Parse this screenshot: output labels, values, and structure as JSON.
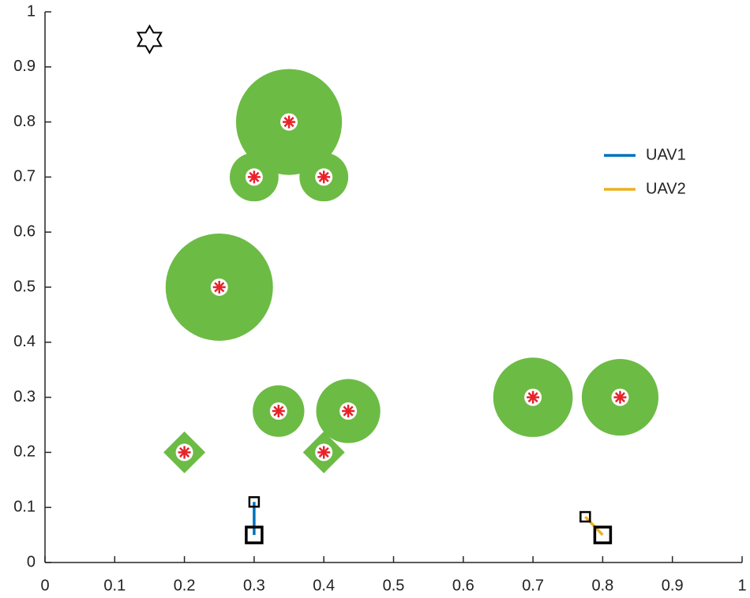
{
  "chart_data": {
    "type": "scatter",
    "xlim": [
      0,
      1
    ],
    "ylim": [
      0,
      1
    ],
    "xticks": [
      0,
      0.1,
      0.2,
      0.3,
      0.4,
      0.5,
      0.6,
      0.7,
      0.8,
      0.9,
      1
    ],
    "yticks": [
      0,
      0.1,
      0.2,
      0.3,
      0.4,
      0.5,
      0.6,
      0.7,
      0.8,
      0.9,
      1
    ],
    "goal": {
      "x": 0.15,
      "y": 0.95
    },
    "obstacle_color": "#6cbb45",
    "center_color": "#e8232a",
    "obstacles": [
      {
        "shape": "circle",
        "x": 0.35,
        "y": 0.8,
        "r": 0.076
      },
      {
        "shape": "circle",
        "x": 0.3,
        "y": 0.7,
        "r": 0.035
      },
      {
        "shape": "circle",
        "x": 0.4,
        "y": 0.7,
        "r": 0.035
      },
      {
        "shape": "circle",
        "x": 0.25,
        "y": 0.5,
        "r": 0.077
      },
      {
        "shape": "circle",
        "x": 0.335,
        "y": 0.275,
        "r": 0.037
      },
      {
        "shape": "circle",
        "x": 0.435,
        "y": 0.275,
        "r": 0.046
      },
      {
        "shape": "circle",
        "x": 0.7,
        "y": 0.3,
        "r": 0.057
      },
      {
        "shape": "circle",
        "x": 0.825,
        "y": 0.3,
        "r": 0.055
      },
      {
        "shape": "diamond",
        "x": 0.2,
        "y": 0.2,
        "r": 0.03
      },
      {
        "shape": "diamond",
        "x": 0.4,
        "y": 0.2,
        "r": 0.03
      }
    ],
    "series": [
      {
        "name": "UAV1",
        "color": "#0072bd",
        "x": [
          0.3,
          0.3
        ],
        "y": [
          0.11,
          0.05
        ]
      },
      {
        "name": "UAV2",
        "color": "#edb120",
        "x": [
          0.775,
          0.8
        ],
        "y": [
          0.083,
          0.05
        ]
      }
    ],
    "legend": "upper right"
  }
}
